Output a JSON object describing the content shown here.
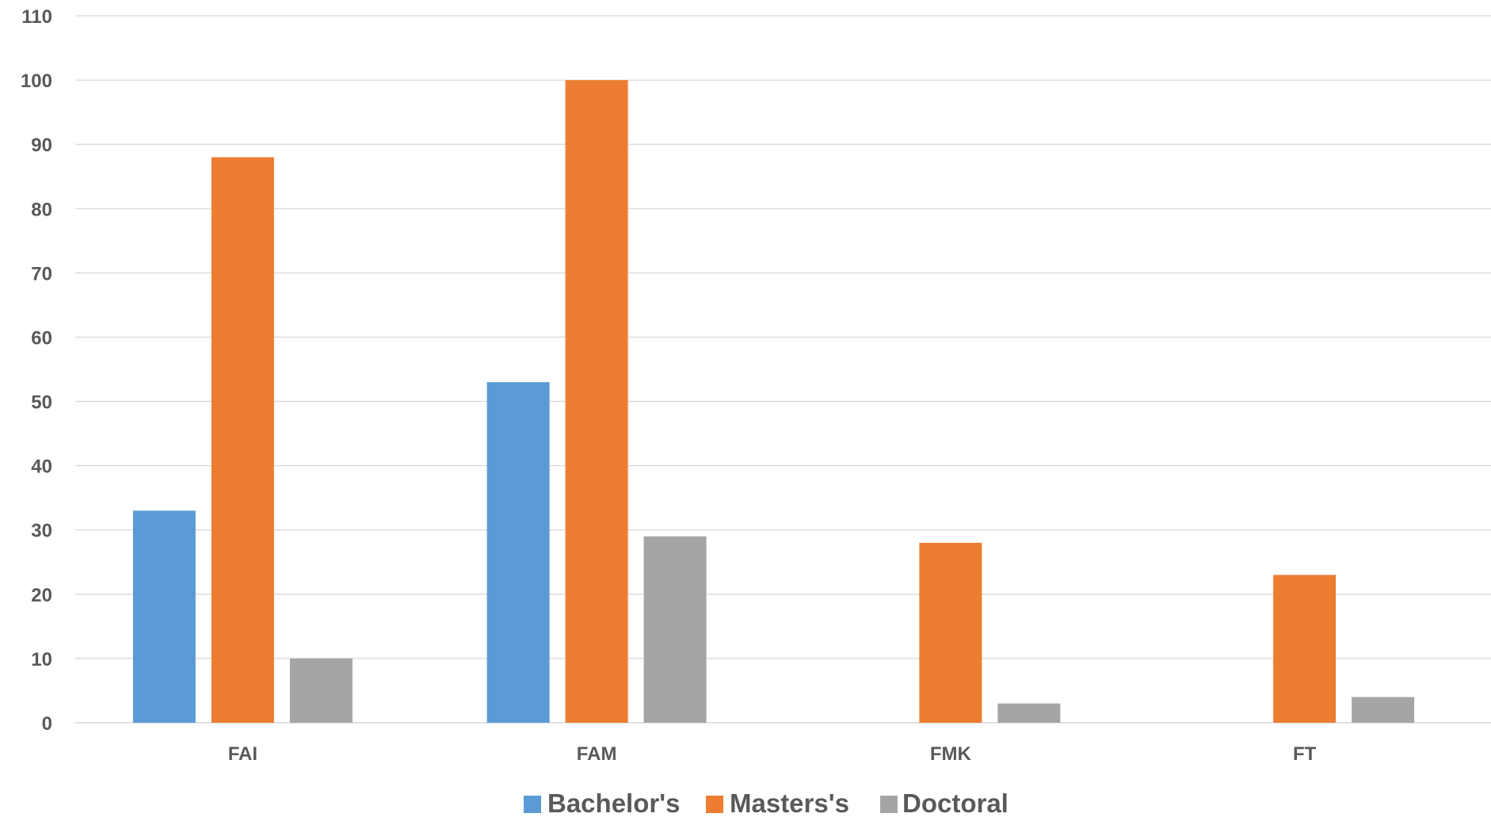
{
  "chart_data": {
    "type": "bar",
    "title": "",
    "xlabel": "",
    "ylabel": "",
    "categories": [
      "FAI",
      "FAM",
      "FMK",
      "FT"
    ],
    "series": [
      {
        "name": "Bachelor's",
        "color": "#5B9BD5",
        "values": [
          33,
          53,
          0,
          0
        ]
      },
      {
        "name": "Masters's",
        "color": "#ED7D31",
        "values": [
          88,
          100,
          28,
          23
        ]
      },
      {
        "name": "Doctoral",
        "color": "#A5A5A5",
        "values": [
          10,
          29,
          3,
          4
        ]
      }
    ],
    "ylim": [
      0,
      110
    ],
    "yticks": [
      0,
      10,
      20,
      30,
      40,
      50,
      60,
      70,
      80,
      90,
      100,
      110
    ],
    "grid": true,
    "legend_position": "bottom",
    "axis_text_color": "#595959",
    "gridline_color": "#D9D9D9"
  }
}
